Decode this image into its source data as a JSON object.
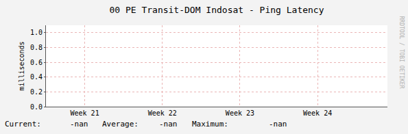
{
  "chart_data": {
    "type": "line",
    "title": "00 PE Transit-DOM Indosat - Ping Latency",
    "y_label": "milliseconds",
    "x": [
      0.5,
      1.5,
      2.5,
      3.5
    ],
    "series": [
      {
        "color": "#00cc00",
        "values": [
          null,
          null,
          null,
          null
        ]
      }
    ],
    "xlim": [
      0,
      4.4
    ],
    "xticks": [
      {
        "value": 0.5,
        "label": "Week 21"
      },
      {
        "value": 1.5,
        "label": "Week 22"
      },
      {
        "value": 2.5,
        "label": "Week 23"
      },
      {
        "value": 3.5,
        "label": "Week 24"
      }
    ],
    "ylim": [
      0,
      1.1
    ],
    "yticks": [
      {
        "value": 0,
        "label": "0.0"
      },
      {
        "value": 0.2,
        "label": "0.2"
      },
      {
        "value": 0.4,
        "label": "0.4"
      },
      {
        "value": 0.6,
        "label": "0.6"
      },
      {
        "value": 0.8,
        "label": "0.8"
      },
      {
        "value": 1.0,
        "label": "1.0"
      }
    ],
    "grid": true,
    "stats": [
      {
        "label": "Current:",
        "value": "-nan"
      },
      {
        "label": "Average:",
        "value": "-nan"
      },
      {
        "label": "Maximum:",
        "value": "-nan"
      }
    ],
    "annotations": [
      "RRDTOOL / TOBI OETIKER"
    ]
  }
}
